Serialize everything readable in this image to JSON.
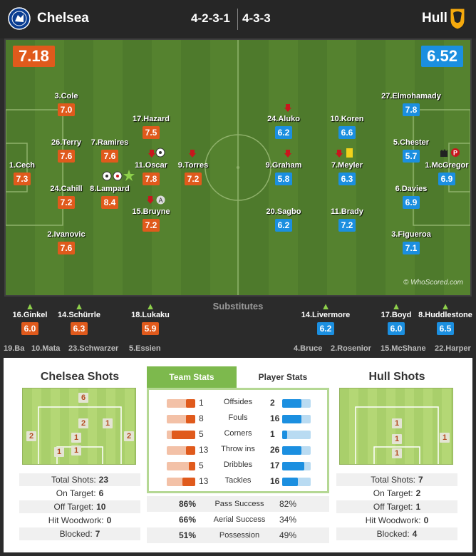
{
  "header": {
    "home_team": "Chelsea",
    "away_team": "Hull",
    "home_formation": "4-2-3-1",
    "away_formation": "4-3-3"
  },
  "ratings": {
    "home": "7.18",
    "away": "6.52"
  },
  "home_players": [
    {
      "name": "1.Cech",
      "rating": "7.3"
    },
    {
      "name": "3.Cole",
      "rating": "7.0"
    },
    {
      "name": "26.Terry",
      "rating": "7.6"
    },
    {
      "name": "24.Cahill",
      "rating": "7.2"
    },
    {
      "name": "2.Ivanovic",
      "rating": "7.6"
    },
    {
      "name": "7.Ramires",
      "rating": "7.6"
    },
    {
      "name": "8.Lampard",
      "rating": "8.4"
    },
    {
      "name": "17.Hazard",
      "rating": "7.5"
    },
    {
      "name": "11.Oscar",
      "rating": "7.8"
    },
    {
      "name": "15.Bruyne",
      "rating": "7.2"
    },
    {
      "name": "9.Torres",
      "rating": "7.2"
    }
  ],
  "away_players": [
    {
      "name": "1.McGregor",
      "rating": "6.9"
    },
    {
      "name": "27.Elmohamady",
      "rating": "7.8"
    },
    {
      "name": "5.Chester",
      "rating": "5.7"
    },
    {
      "name": "6.Davies",
      "rating": "6.9"
    },
    {
      "name": "3.Figueroa",
      "rating": "7.1"
    },
    {
      "name": "10.Koren",
      "rating": "6.6"
    },
    {
      "name": "7.Meyler",
      "rating": "6.3"
    },
    {
      "name": "11.Brady",
      "rating": "7.2"
    },
    {
      "name": "24.Aluko",
      "rating": "6.2"
    },
    {
      "name": "9.Graham",
      "rating": "5.8"
    },
    {
      "name": "20.Sagbo",
      "rating": "6.2"
    }
  ],
  "watermark": "© WhoScored.com",
  "substitutes_title": "Substitutes",
  "home_subs": [
    {
      "name": "16.Ginkel",
      "rating": "6.0"
    },
    {
      "name": "14.Schürrle",
      "rating": "6.3"
    },
    {
      "name": "18.Lukaku",
      "rating": "5.9"
    }
  ],
  "away_subs": [
    {
      "name": "14.Livermore",
      "rating": "6.2"
    },
    {
      "name": "17.Boyd",
      "rating": "6.0"
    },
    {
      "name": "8.Huddlestone",
      "rating": "6.5"
    }
  ],
  "home_bench": [
    "19.Ba",
    "10.Mata",
    "23.Schwarzer",
    "5.Essien"
  ],
  "away_bench": [
    "4.Bruce",
    "2.Rosenior",
    "15.McShane",
    "22.Harper"
  ],
  "home_shots": {
    "title": "Chelsea Shots",
    "zones": [
      "6",
      "2",
      "2",
      "2",
      "1",
      "1",
      "1",
      "1"
    ],
    "rows": [
      {
        "label": "Total Shots:",
        "value": "23"
      },
      {
        "label": "On Target:",
        "value": "6"
      },
      {
        "label": "Off Target:",
        "value": "10"
      },
      {
        "label": "Hit Woodwork:",
        "value": "0"
      },
      {
        "label": "Blocked:",
        "value": "7"
      }
    ]
  },
  "away_shots": {
    "title": "Hull Shots",
    "zones": [
      "1",
      "1",
      "1",
      "1"
    ],
    "rows": [
      {
        "label": "Total Shots:",
        "value": "7"
      },
      {
        "label": "On Target:",
        "value": "2"
      },
      {
        "label": "Off Target:",
        "value": "1"
      },
      {
        "label": "Hit Woodwork:",
        "value": "0"
      },
      {
        "label": "Blocked:",
        "value": "4"
      }
    ]
  },
  "tabs": {
    "team": "Team Stats",
    "player": "Player Stats"
  },
  "team_stats": [
    {
      "label": "Offsides",
      "home": "1",
      "away": "2",
      "home_frac": 0.33,
      "away_frac": 0.67
    },
    {
      "label": "Fouls",
      "home": "8",
      "away": "16",
      "home_frac": 0.33,
      "away_frac": 0.67
    },
    {
      "label": "Corners",
      "home": "5",
      "away": "1",
      "home_frac": 0.83,
      "away_frac": 0.17
    },
    {
      "label": "Throw ins",
      "home": "13",
      "away": "26",
      "home_frac": 0.33,
      "away_frac": 0.67
    },
    {
      "label": "Dribbles",
      "home": "5",
      "away": "17",
      "home_frac": 0.23,
      "away_frac": 0.77
    },
    {
      "label": "Tackles",
      "home": "13",
      "away": "16",
      "home_frac": 0.45,
      "away_frac": 0.55
    }
  ],
  "percent_stats": [
    {
      "label": "Pass Success",
      "home": "86%",
      "away": "82%"
    },
    {
      "label": "Aerial Success",
      "home": "66%",
      "away": "34%"
    },
    {
      "label": "Possession",
      "home": "51%",
      "away": "49%"
    }
  ],
  "colors": {
    "home": "#e05a1c",
    "away": "#1b8fe0",
    "pitch": "#4e7a2c",
    "accent": "#7db94d"
  }
}
